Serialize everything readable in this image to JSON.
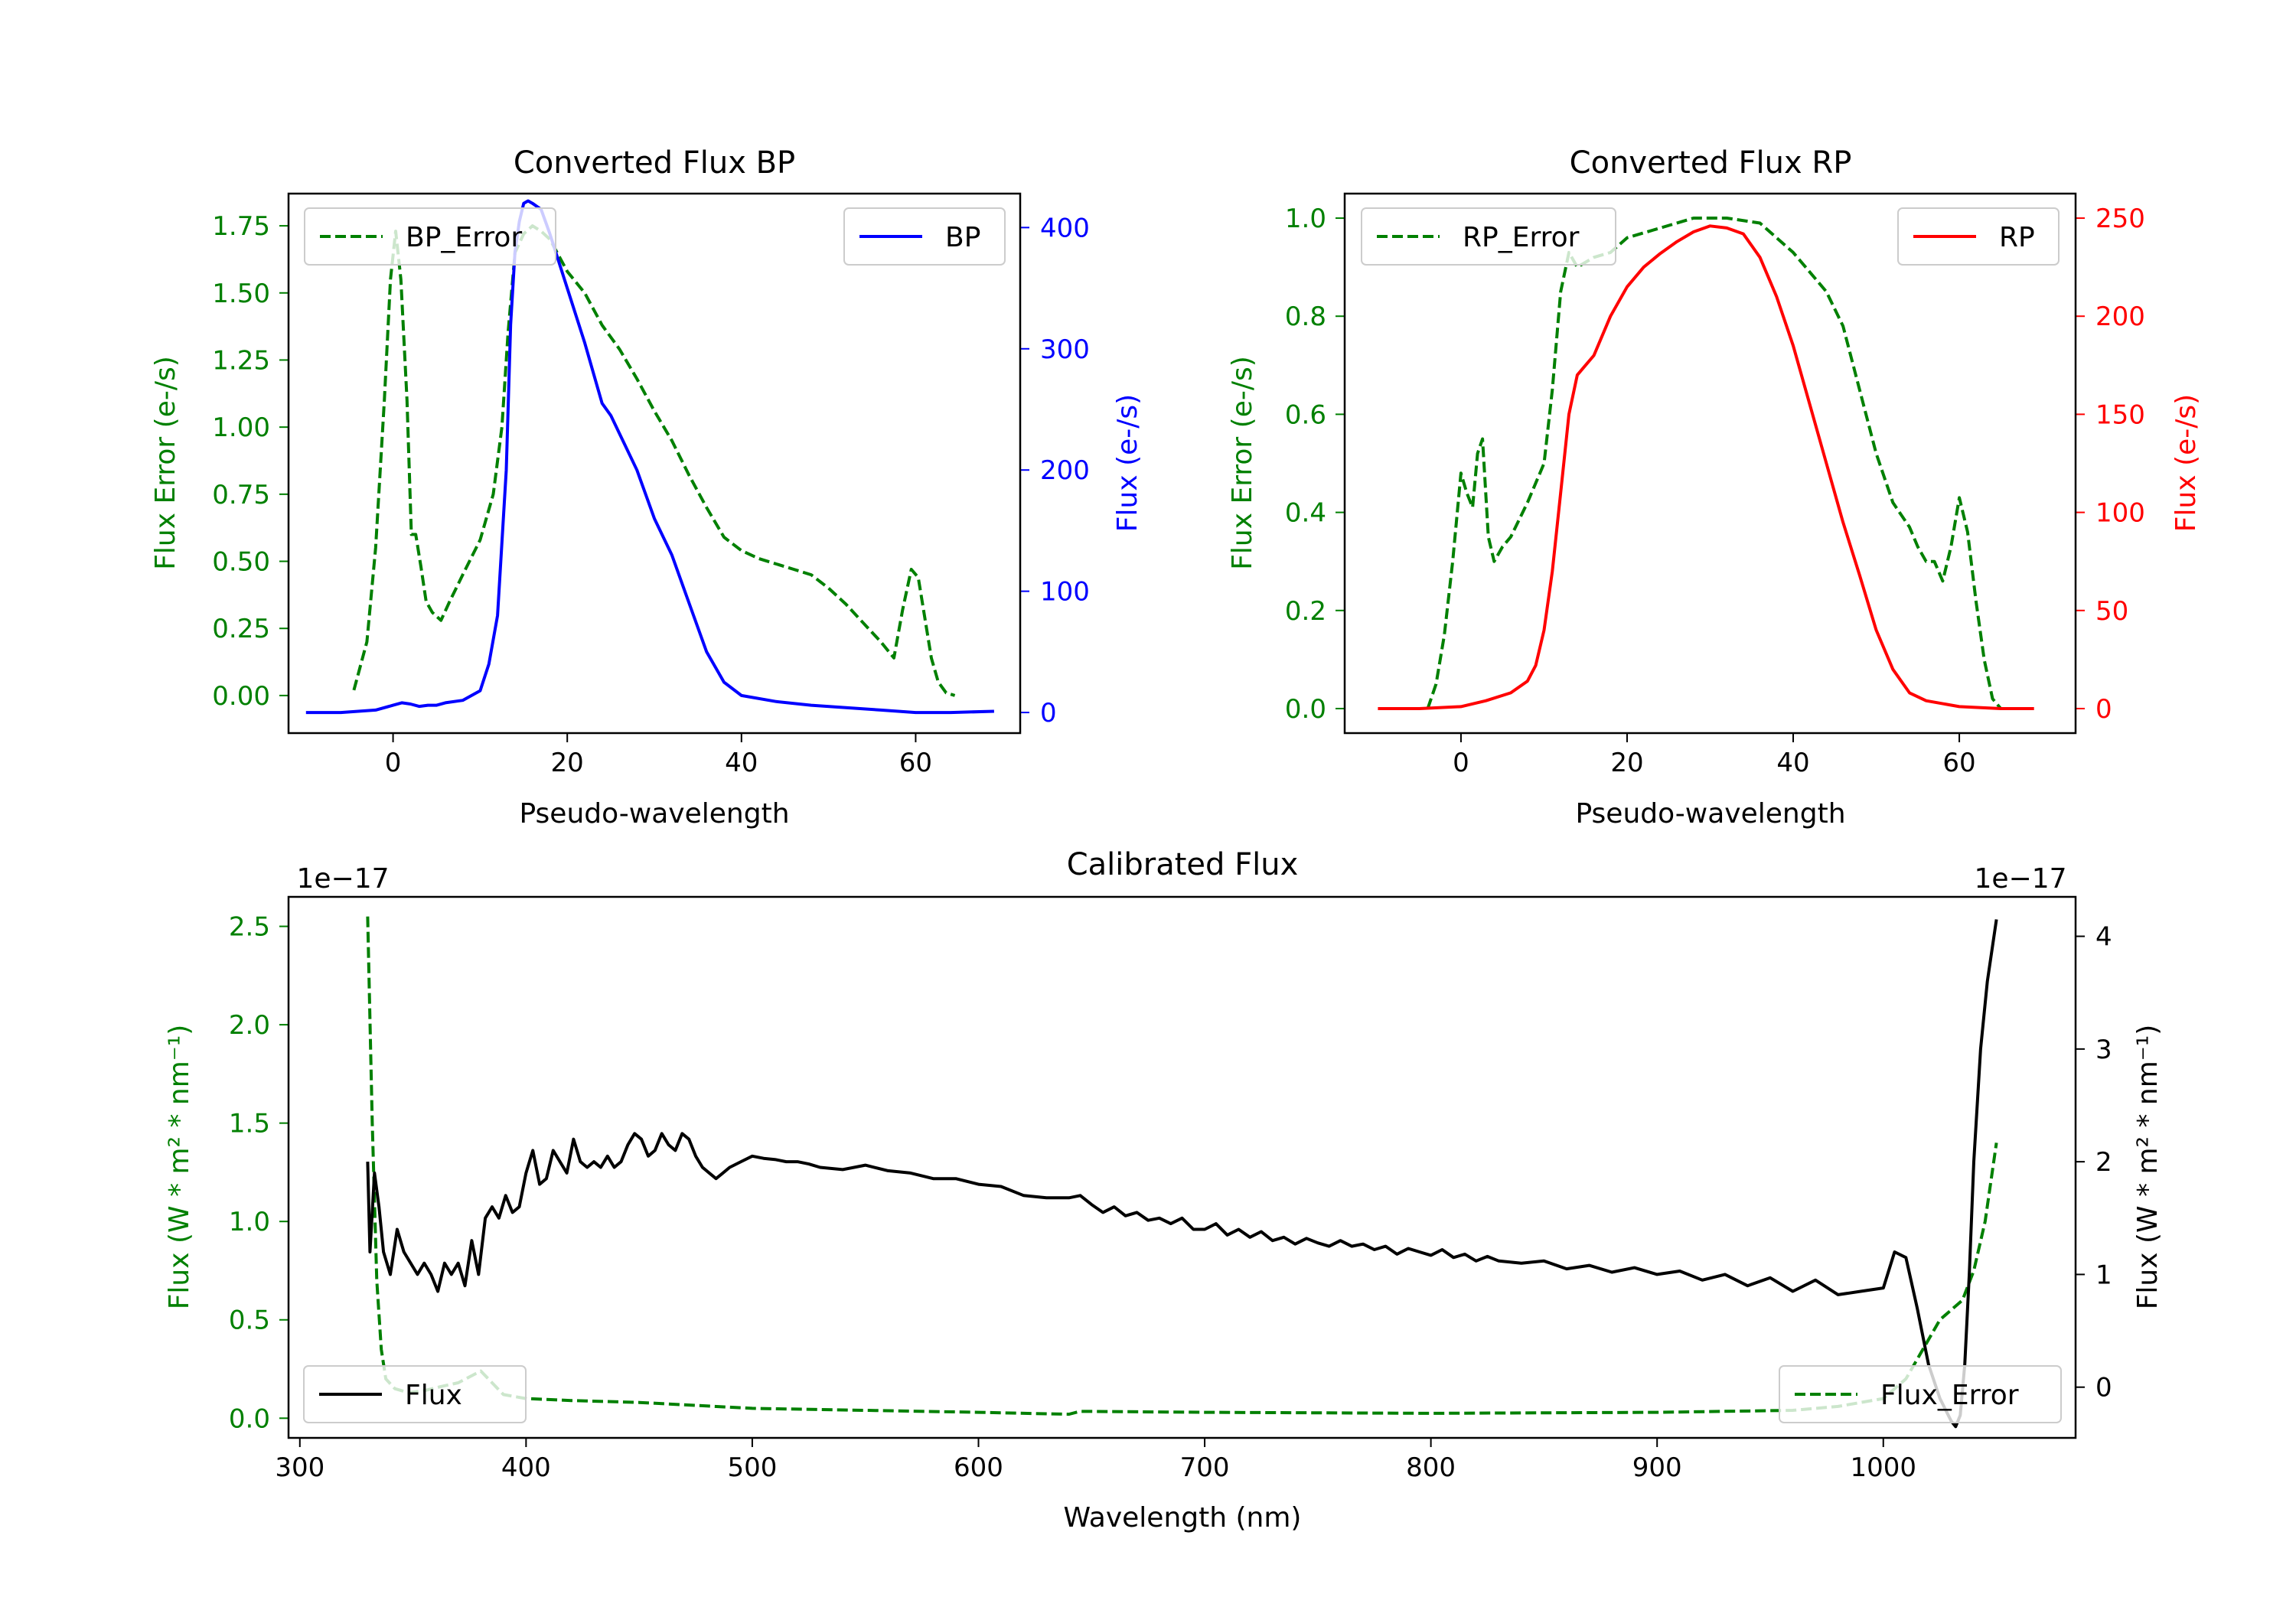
{
  "colors": {
    "bp": "#0000ff",
    "rp": "#ff0000",
    "error": "#008000",
    "flux": "#000000",
    "axis": "#000000"
  },
  "chart_data": [
    {
      "id": "bp",
      "type": "line",
      "title": "Converted Flux BP",
      "xlabel": "Pseudo-wavelength",
      "ylabel_left": "Flux Error (e-/s)",
      "ylabel_right": "Flux (e-/s)",
      "xlim": [
        -12,
        72
      ],
      "ylim_left": [
        -0.14,
        1.87
      ],
      "ylim_right": [
        -17,
        428
      ],
      "xticks": [
        "0",
        "20",
        "40",
        "60"
      ],
      "yticks_left": [
        "0.00",
        "0.25",
        "0.50",
        "0.75",
        "1.00",
        "1.25",
        "1.50",
        "1.75"
      ],
      "yticks_right": [
        "0",
        "100",
        "200",
        "300",
        "400"
      ],
      "legend_left": "BP_Error",
      "legend_right": "BP",
      "series": [
        {
          "name": "BP_Error",
          "axis": "left",
          "style": "dashed",
          "x": [
            -4.5,
            -3,
            -2,
            -1,
            -0.3,
            0.3,
            0.9,
            1.6,
            2.1,
            2.6,
            3.2,
            3.8,
            4.5,
            5.5,
            6.5,
            8,
            10,
            11.5,
            12.5,
            13.2,
            14,
            15,
            16,
            17,
            18,
            20,
            22,
            24,
            26,
            28,
            30,
            32,
            34,
            36,
            38,
            40,
            42,
            44,
            46,
            48,
            50,
            52,
            54,
            56,
            57.5,
            58.5,
            59.5,
            60.3,
            61,
            61.8,
            62.6,
            63.5,
            64.5
          ],
          "y": [
            0.02,
            0.2,
            0.55,
            1.1,
            1.55,
            1.73,
            1.55,
            1.1,
            0.6,
            0.6,
            0.48,
            0.35,
            0.31,
            0.28,
            0.35,
            0.45,
            0.58,
            0.75,
            1.0,
            1.35,
            1.65,
            1.72,
            1.75,
            1.73,
            1.7,
            1.58,
            1.5,
            1.38,
            1.29,
            1.18,
            1.06,
            0.95,
            0.82,
            0.7,
            0.59,
            0.54,
            0.51,
            0.49,
            0.47,
            0.45,
            0.4,
            0.34,
            0.27,
            0.2,
            0.14,
            0.32,
            0.47,
            0.44,
            0.3,
            0.14,
            0.05,
            0.01,
            0.0
          ]
        },
        {
          "name": "BP",
          "axis": "right",
          "style": "solid",
          "x": [
            -10,
            -6,
            -2,
            0,
            1,
            2,
            3,
            4,
            5,
            6,
            8,
            10,
            11,
            12,
            13,
            13.5,
            14,
            14.5,
            15,
            15.5,
            16,
            17,
            18,
            20,
            22,
            24,
            25,
            26,
            28,
            30,
            32,
            34,
            36,
            38,
            40,
            44,
            48,
            52,
            56,
            60,
            64,
            69
          ],
          "y": [
            0,
            0,
            2,
            6,
            8,
            7,
            5,
            6,
            6,
            8,
            10,
            18,
            40,
            80,
            200,
            320,
            380,
            405,
            420,
            422,
            420,
            415,
            395,
            350,
            305,
            255,
            245,
            230,
            200,
            160,
            130,
            90,
            50,
            25,
            14,
            9,
            6,
            4,
            2,
            0,
            0,
            1
          ]
        }
      ]
    },
    {
      "id": "rp",
      "type": "line",
      "title": "Converted Flux RP",
      "xlabel": "Pseudo-wavelength",
      "ylabel_left": "Flux Error (e-/s)",
      "ylabel_right": "Flux (e-/s)",
      "xlim": [
        -14,
        74
      ],
      "ylim_left": [
        -0.05,
        1.05
      ],
      "ylim_right": [
        -12.5,
        262.5
      ],
      "xticks": [
        "0",
        "20",
        "40",
        "60"
      ],
      "yticks_left": [
        "0.0",
        "0.2",
        "0.4",
        "0.6",
        "0.8",
        "1.0"
      ],
      "yticks_right": [
        "0",
        "50",
        "100",
        "150",
        "200",
        "250"
      ],
      "legend_left": "RP_Error",
      "legend_right": "RP",
      "series": [
        {
          "name": "RP_Error",
          "axis": "left",
          "style": "dashed",
          "x": [
            -4,
            -3,
            -2,
            -1,
            0,
            0.7,
            1.4,
            2,
            2.6,
            3.3,
            4,
            5,
            6,
            8,
            10,
            11,
            12,
            13,
            14,
            16,
            18,
            20,
            24,
            28,
            32,
            36,
            40,
            44,
            46,
            48,
            50,
            52,
            54,
            55,
            56,
            57,
            58,
            59,
            60,
            61,
            62,
            63,
            64,
            65
          ],
          "y": [
            0.0,
            0.05,
            0.15,
            0.3,
            0.48,
            0.44,
            0.41,
            0.52,
            0.55,
            0.35,
            0.3,
            0.33,
            0.35,
            0.42,
            0.5,
            0.65,
            0.85,
            0.93,
            0.9,
            0.92,
            0.93,
            0.96,
            0.98,
            1.0,
            1.0,
            0.99,
            0.93,
            0.85,
            0.78,
            0.65,
            0.52,
            0.42,
            0.37,
            0.33,
            0.3,
            0.3,
            0.26,
            0.33,
            0.43,
            0.36,
            0.22,
            0.1,
            0.02,
            0.0
          ]
        },
        {
          "name": "RP",
          "axis": "right",
          "style": "solid",
          "x": [
            -10,
            -5,
            0,
            3,
            6,
            8,
            9,
            10,
            11,
            12,
            13,
            14,
            15,
            16,
            18,
            20,
            22,
            24,
            26,
            28,
            30,
            32,
            34,
            36,
            38,
            40,
            42,
            44,
            46,
            48,
            50,
            52,
            54,
            56,
            60,
            65,
            69
          ],
          "y": [
            0,
            0,
            1,
            4,
            8,
            14,
            22,
            40,
            70,
            110,
            150,
            170,
            175,
            180,
            200,
            215,
            225,
            232,
            238,
            243,
            246,
            245,
            242,
            230,
            210,
            185,
            155,
            125,
            95,
            68,
            40,
            20,
            8,
            4,
            1,
            0,
            0
          ]
        }
      ]
    },
    {
      "id": "calibrated",
      "type": "line",
      "title": "Calibrated Flux",
      "xlabel": "Wavelength (nm)",
      "ylabel_left": "Flux (W * m² * nm⁻¹)",
      "ylabel_right": "Flux (W * m² * nm⁻¹)",
      "offset_left": "1e−17",
      "offset_right": "1e−17",
      "xlim": [
        295,
        1085
      ],
      "ylim_left": [
        -0.1,
        2.65
      ],
      "ylim_right": [
        -0.45,
        4.35
      ],
      "xticks": [
        "300",
        "400",
        "500",
        "600",
        "700",
        "800",
        "900",
        "1000"
      ],
      "yticks_left": [
        "0.0",
        "0.5",
        "1.0",
        "1.5",
        "2.0",
        "2.5"
      ],
      "yticks_right": [
        "0",
        "1",
        "2",
        "3",
        "4"
      ],
      "legend_left": "Flux",
      "legend_right": "Flux_Error",
      "series": [
        {
          "name": "Flux_Error",
          "axis": "left",
          "style": "dashed",
          "x": [
            330,
            332,
            334,
            336,
            338,
            342,
            348,
            355,
            362,
            370,
            380,
            390,
            400,
            420,
            450,
            500,
            550,
            600,
            640,
            645,
            700,
            800,
            900,
            960,
            980,
            1000,
            1010,
            1020,
            1025,
            1030,
            1035,
            1040,
            1045,
            1050
          ],
          "y": [
            2.55,
            1.5,
            0.7,
            0.35,
            0.2,
            0.15,
            0.13,
            0.14,
            0.16,
            0.18,
            0.24,
            0.12,
            0.1,
            0.09,
            0.08,
            0.05,
            0.04,
            0.03,
            0.02,
            0.035,
            0.03,
            0.025,
            0.03,
            0.04,
            0.06,
            0.1,
            0.2,
            0.4,
            0.5,
            0.55,
            0.6,
            0.75,
            1.0,
            1.4
          ]
        },
        {
          "name": "Flux",
          "axis": "right",
          "style": "solid",
          "x": [
            330,
            331,
            333,
            335,
            337,
            340,
            343,
            346,
            349,
            352,
            355,
            358,
            361,
            364,
            367,
            370,
            373,
            376,
            379,
            382,
            385,
            388,
            391,
            394,
            397,
            400,
            403,
            406,
            409,
            412,
            415,
            418,
            421,
            424,
            427,
            430,
            433,
            436,
            439,
            442,
            445,
            448,
            451,
            454,
            457,
            460,
            463,
            466,
            469,
            472,
            475,
            478,
            481,
            484,
            487,
            490,
            495,
            500,
            505,
            510,
            515,
            520,
            525,
            530,
            540,
            550,
            560,
            570,
            580,
            590,
            600,
            610,
            620,
            630,
            640,
            645,
            650,
            655,
            660,
            665,
            670,
            675,
            680,
            685,
            690,
            695,
            700,
            705,
            710,
            715,
            720,
            725,
            730,
            735,
            740,
            745,
            750,
            755,
            760,
            765,
            770,
            775,
            780,
            785,
            790,
            795,
            800,
            805,
            810,
            815,
            820,
            825,
            830,
            840,
            850,
            860,
            870,
            880,
            890,
            900,
            910,
            920,
            930,
            940,
            950,
            960,
            970,
            980,
            990,
            1000,
            1005,
            1010,
            1015,
            1020,
            1025,
            1030,
            1032,
            1034,
            1036,
            1038,
            1040,
            1043,
            1046,
            1050
          ],
          "y": [
            2.0,
            1.2,
            1.9,
            1.6,
            1.2,
            1.0,
            1.4,
            1.2,
            1.1,
            1.0,
            1.1,
            1.0,
            0.85,
            1.1,
            1.0,
            1.1,
            0.9,
            1.3,
            1.0,
            1.5,
            1.6,
            1.5,
            1.7,
            1.55,
            1.6,
            1.9,
            2.1,
            1.8,
            1.85,
            2.1,
            2.0,
            1.9,
            2.2,
            2.0,
            1.95,
            2.0,
            1.95,
            2.05,
            1.95,
            2.0,
            2.15,
            2.25,
            2.2,
            2.05,
            2.1,
            2.25,
            2.15,
            2.1,
            2.25,
            2.2,
            2.05,
            1.95,
            1.9,
            1.85,
            1.9,
            1.95,
            2.0,
            2.05,
            2.03,
            2.02,
            2.0,
            2.0,
            1.98,
            1.95,
            1.93,
            1.97,
            1.92,
            1.9,
            1.85,
            1.85,
            1.8,
            1.78,
            1.7,
            1.68,
            1.68,
            1.7,
            1.62,
            1.55,
            1.6,
            1.52,
            1.55,
            1.48,
            1.5,
            1.45,
            1.5,
            1.4,
            1.4,
            1.45,
            1.35,
            1.4,
            1.33,
            1.38,
            1.3,
            1.33,
            1.27,
            1.32,
            1.28,
            1.25,
            1.3,
            1.25,
            1.27,
            1.22,
            1.25,
            1.18,
            1.23,
            1.2,
            1.17,
            1.22,
            1.15,
            1.18,
            1.12,
            1.16,
            1.12,
            1.1,
            1.12,
            1.05,
            1.08,
            1.02,
            1.06,
            1.0,
            1.03,
            0.95,
            1.0,
            0.9,
            0.97,
            0.85,
            0.95,
            0.82,
            0.85,
            0.88,
            1.2,
            1.15,
            0.7,
            0.2,
            -0.1,
            -0.3,
            -0.35,
            -0.25,
            0.2,
            1.0,
            2.0,
            3.0,
            3.6,
            4.15
          ]
        }
      ]
    }
  ]
}
